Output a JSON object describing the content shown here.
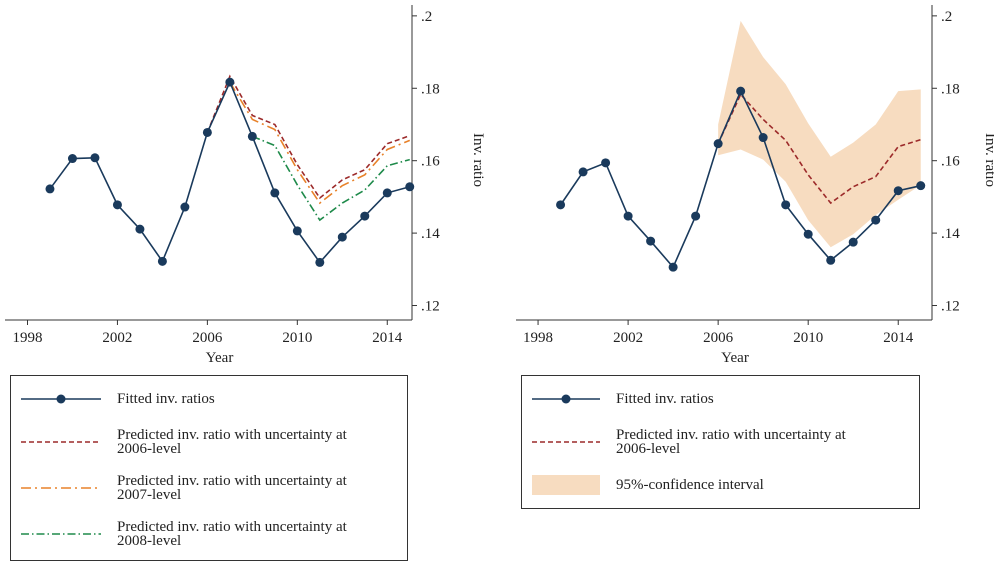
{
  "chart_data": [
    {
      "type": "line",
      "x": [
        1999,
        2000,
        2001,
        2002,
        2003,
        2004,
        2005,
        2006,
        2007,
        2008,
        2009,
        2010,
        2011,
        2012,
        2013,
        2014,
        2015
      ],
      "xlabel": "Year",
      "ylabel": "Inv. ratio",
      "xlim": [
        1997,
        2015.1
      ],
      "xticks": [
        1998,
        2002,
        2006,
        2010,
        2014
      ],
      "ylim": [
        0.116,
        0.203
      ],
      "yticks": [
        {
          "value": 0.12,
          "label": ".12"
        },
        {
          "value": 0.14,
          "label": ".14"
        },
        {
          "value": 0.16,
          "label": ".16"
        },
        {
          "value": 0.18,
          "label": ".18"
        },
        {
          "value": 0.2,
          "label": ".2"
        }
      ],
      "series": [
        {
          "name": "Fitted inv. ratios",
          "color": "#1a3a5c",
          "dash": "solid",
          "marker": "circle",
          "values": [
            0.1522,
            0.1606,
            0.1608,
            0.1478,
            0.1411,
            0.1322,
            0.1472,
            0.1678,
            0.1817,
            0.1667,
            0.1511,
            0.1406,
            0.1319,
            0.1389,
            0.1447,
            0.1511,
            0.1528
          ]
        },
        {
          "name": "Predicted inv. ratio with uncertainty at 2006-level",
          "color": "#9c2a2a",
          "dash": "dashed",
          "values": [
            null,
            null,
            null,
            null,
            null,
            null,
            null,
            0.1678,
            0.1833,
            0.1725,
            0.17,
            0.1589,
            0.1497,
            0.1547,
            0.1575,
            0.1647,
            0.1669
          ]
        },
        {
          "name": "Predicted inv. ratio with uncertainty at 2007-level",
          "color": "#e8822a",
          "dash": "longdashdot",
          "values": [
            null,
            null,
            null,
            null,
            null,
            null,
            null,
            null,
            0.1817,
            0.1714,
            0.1686,
            0.1575,
            0.1483,
            0.1531,
            0.1561,
            0.1631,
            0.1656
          ]
        },
        {
          "name": "Predicted inv. ratio with uncertainty at 2008-level",
          "color": "#1e8a4a",
          "dash": "dashdot",
          "values": [
            null,
            null,
            null,
            null,
            null,
            null,
            null,
            null,
            null,
            0.1667,
            0.1642,
            0.1533,
            0.1436,
            0.1483,
            0.1519,
            0.1586,
            0.1603
          ]
        }
      ]
    },
    {
      "type": "line",
      "x": [
        1999,
        2000,
        2001,
        2002,
        2003,
        2004,
        2005,
        2006,
        2007,
        2008,
        2009,
        2010,
        2011,
        2012,
        2013,
        2014,
        2015
      ],
      "xlabel": "Year",
      "ylabel": "Inv. ratio",
      "xlim": [
        1997.02,
        2015.5
      ],
      "xticks": [
        1998,
        2002,
        2006,
        2010,
        2014
      ],
      "ylim": [
        0.116,
        0.203
      ],
      "yticks": [
        {
          "value": 0.12,
          "label": ".12"
        },
        {
          "value": 0.14,
          "label": ".14"
        },
        {
          "value": 0.16,
          "label": ".16"
        },
        {
          "value": 0.18,
          "label": ".18"
        },
        {
          "value": 0.2,
          "label": ".2"
        }
      ],
      "series": [
        {
          "name": "Fitted inv. ratios",
          "color": "#1a3a5c",
          "dash": "solid",
          "marker": "circle",
          "values": [
            0.1478,
            0.1569,
            0.1594,
            0.1447,
            0.1378,
            0.1306,
            0.1447,
            0.1647,
            0.1792,
            0.1664,
            0.1478,
            0.1397,
            0.1325,
            0.1375,
            0.1436,
            0.1517,
            0.1531
          ]
        },
        {
          "name": "Predicted inv. ratio with uncertainty at 2006-level",
          "color": "#9c2a2a",
          "dash": "dashed",
          "values": [
            null,
            null,
            null,
            null,
            null,
            null,
            null,
            0.1647,
            0.1783,
            0.1714,
            0.1656,
            0.1561,
            0.1483,
            0.1528,
            0.1556,
            0.1639,
            0.1658
          ]
        },
        {
          "name": "95%-confidence interval",
          "color": "#f7dcc0",
          "band": true,
          "lower": [
            null,
            null,
            null,
            null,
            null,
            null,
            null,
            0.1615,
            0.1631,
            0.1603,
            0.1542,
            0.1436,
            0.1361,
            0.1397,
            0.145,
            0.1492,
            0.1533
          ],
          "upper": [
            null,
            null,
            null,
            null,
            null,
            null,
            null,
            0.17,
            0.1986,
            0.1886,
            0.1811,
            0.1703,
            0.1611,
            0.165,
            0.17,
            0.1792,
            0.1797
          ]
        }
      ]
    }
  ]
}
